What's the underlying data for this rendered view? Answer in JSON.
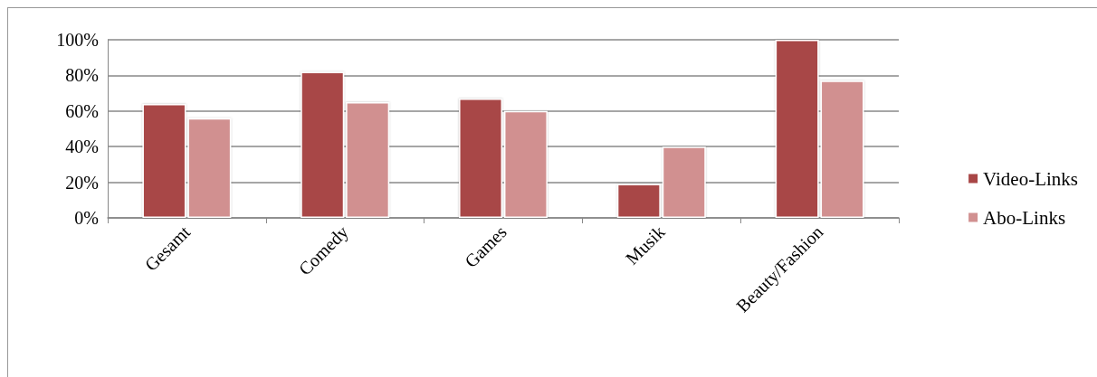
{
  "chart_data": {
    "type": "bar",
    "categories": [
      "Gesamt",
      "Comedy",
      "Games",
      "Musik",
      "Beauty/Fashion"
    ],
    "series": [
      {
        "name": "Video-Links",
        "color": "#a84646",
        "values": [
          64,
          82,
          67,
          19,
          100
        ]
      },
      {
        "name": "Abo-Links",
        "color": "#d19090",
        "values": [
          56,
          65,
          60,
          40,
          77
        ]
      }
    ],
    "ylim": [
      0,
      100
    ],
    "yticks": [
      {
        "value": 0,
        "label": "0%"
      },
      {
        "value": 20,
        "label": "20%"
      },
      {
        "value": 40,
        "label": "40%"
      },
      {
        "value": 60,
        "label": "60%"
      },
      {
        "value": 80,
        "label": "80%"
      },
      {
        "value": 100,
        "label": "100%"
      }
    ],
    "grid": "y",
    "legend": "right"
  }
}
